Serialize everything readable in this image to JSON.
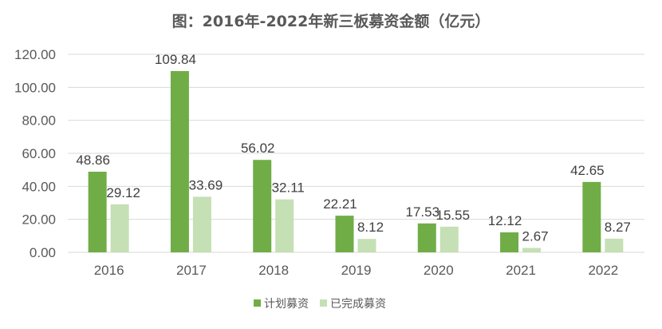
{
  "chart_data": {
    "type": "bar",
    "title": "图：2016年-2022年新三板募资金额（亿元）",
    "categories": [
      "2016",
      "2017",
      "2018",
      "2019",
      "2020",
      "2021",
      "2022"
    ],
    "series": [
      {
        "name": "计划募资",
        "color": "#70ad47",
        "values": [
          48.86,
          109.84,
          56.02,
          22.21,
          17.53,
          12.12,
          42.65
        ]
      },
      {
        "name": "已完成募资",
        "color": "#c5e0b4",
        "values": [
          29.12,
          33.69,
          32.11,
          8.12,
          15.55,
          2.67,
          8.27
        ]
      }
    ],
    "y_ticks": [
      "0.00",
      "20.00",
      "40.00",
      "60.00",
      "80.00",
      "100.00",
      "120.00"
    ],
    "ylim": [
      0,
      120
    ],
    "grid": true,
    "legend_position": "bottom",
    "xlabel": "",
    "ylabel": ""
  }
}
